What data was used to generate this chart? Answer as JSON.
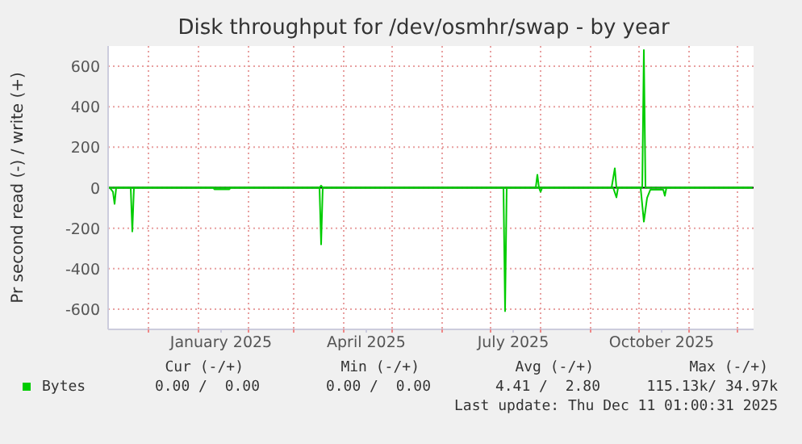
{
  "chart_data": {
    "type": "line",
    "title": "Disk throughput for /dev/osmhr/swap - by year",
    "ylabel": "Pr second read (-) / write (+)",
    "xlim": [
      "2024-11-06",
      "2025-12-11"
    ],
    "xticks": [
      {
        "value": "2024-12-01",
        "label": null
      },
      {
        "value": "2025-01-01",
        "label": null
      },
      {
        "value": "2025-01-15",
        "label": "January 2025"
      },
      {
        "value": "2025-02-01",
        "label": null
      },
      {
        "value": "2025-03-01",
        "label": null
      },
      {
        "value": "2025-04-01",
        "label": null
      },
      {
        "value": "2025-04-15",
        "label": "April 2025"
      },
      {
        "value": "2025-05-01",
        "label": null
      },
      {
        "value": "2025-06-01",
        "label": null
      },
      {
        "value": "2025-07-01",
        "label": null
      },
      {
        "value": "2025-07-15",
        "label": "July 2025"
      },
      {
        "value": "2025-08-01",
        "label": null
      },
      {
        "value": "2025-09-01",
        "label": null
      },
      {
        "value": "2025-10-01",
        "label": null
      },
      {
        "value": "2025-10-15",
        "label": "October 2025"
      },
      {
        "value": "2025-11-01",
        "label": null
      },
      {
        "value": "2025-12-01",
        "label": null
      }
    ],
    "ylim": [
      -700,
      700
    ],
    "yticks": [
      -600,
      -400,
      -200,
      0,
      200,
      400,
      600
    ],
    "grid": true,
    "legend": "bottom left",
    "ref_lines": [
      {
        "axis": "y",
        "value": 0,
        "color": "#000000"
      }
    ],
    "series": [
      {
        "name": "Bytes",
        "color": "#00cc00",
        "x": [
          "2024-11-07",
          "2025-03-17",
          "2025-03-18",
          "2025-03-19",
          "2025-07-29",
          "2025-07-30",
          "2025-07-31",
          "2025-09-14",
          "2025-09-16",
          "2025-09-17",
          "2025-10-03",
          "2025-10-04",
          "2025-10-05",
          "2025-12-10"
        ],
        "values": [
          0,
          0,
          10,
          0,
          0,
          64,
          0,
          0,
          96,
          0,
          0,
          680,
          0,
          0
        ]
      },
      {
        "color": "#00cc00",
        "x": [
          "2024-11-07",
          "2024-11-09",
          "2024-11-10",
          "2024-11-11",
          "2024-11-20",
          "2024-11-21",
          "2024-11-22",
          "2025-01-10",
          "2025-01-11",
          "2025-01-20",
          "2025-01-21",
          "2025-03-17",
          "2025-03-18",
          "2025-03-19",
          "2025-07-09",
          "2025-07-10",
          "2025-07-11",
          "2025-07-31",
          "2025-08-01",
          "2025-08-02",
          "2025-09-15",
          "2025-09-17",
          "2025-09-18",
          "2025-10-02",
          "2025-10-04",
          "2025-10-06",
          "2025-10-08",
          "2025-10-16",
          "2025-10-17",
          "2025-10-18",
          "2025-12-10"
        ],
        "values": [
          0,
          -20,
          -80,
          0,
          0,
          -216,
          0,
          0,
          -8,
          -8,
          0,
          0,
          -280,
          0,
          0,
          -610,
          0,
          0,
          -20,
          0,
          0,
          -48,
          0,
          0,
          -168,
          -50,
          -10,
          -10,
          -40,
          0,
          0
        ]
      }
    ],
    "annotations": [
      "Cur (-/+)",
      "Min (-/+)",
      "Avg (-/+)",
      "Max (-/+)",
      "0.00 /  0.00",
      "0.00 /  0.00",
      "4.41 /  2.80",
      "115.13k/ 34.97k",
      "Last update: Thu Dec 11 01:00:31 2025"
    ]
  }
}
